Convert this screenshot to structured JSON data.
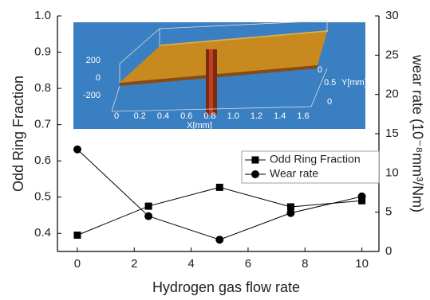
{
  "chart_data": {
    "type": "line",
    "xlabel": "Hydrogen gas flow rate",
    "ylabel": "Odd Ring Fraction",
    "y2label": "wear rate (10⁻⁸mm³/Nm)",
    "x": [
      0,
      2.5,
      5,
      7.5,
      10
    ],
    "series": [
      {
        "name": "Odd Ring Fraction",
        "color": "#000000",
        "marker": "square",
        "values": [
          0.395,
          0.475,
          0.527,
          0.473,
          0.49
        ]
      },
      {
        "name": "Wear rate",
        "color": "#000000",
        "marker": "circle",
        "axis": "y2",
        "values": [
          13.0,
          4.5,
          1.5,
          4.9,
          7.0
        ]
      }
    ],
    "xlim": [
      -0.7,
      10.6
    ],
    "xticks": [
      0,
      2,
      4,
      6,
      8,
      10
    ],
    "ylim": [
      0.35,
      1.0
    ],
    "yticks": [
      0.4,
      0.5,
      0.6,
      0.7,
      0.8,
      0.9,
      {
        "value": 1.0,
        "label": "1.0"
      }
    ],
    "y2lim": [
      0,
      30
    ],
    "y2ticks": [
      0,
      5,
      10,
      15,
      20,
      25,
      30
    ],
    "legend": "center right",
    "inset": {
      "xticks": [
        0,
        0.2,
        0.4,
        0.6,
        0.8,
        {
          "value": 1.0,
          "label": "1.0"
        },
        1.2,
        1.4,
        1.6
      ],
      "xlabel": "X[mm]",
      "zticks": [
        200,
        0,
        -200
      ],
      "yticks": [
        0,
        0.5,
        0
      ],
      "ylabel": "Y[mm]"
    }
  }
}
